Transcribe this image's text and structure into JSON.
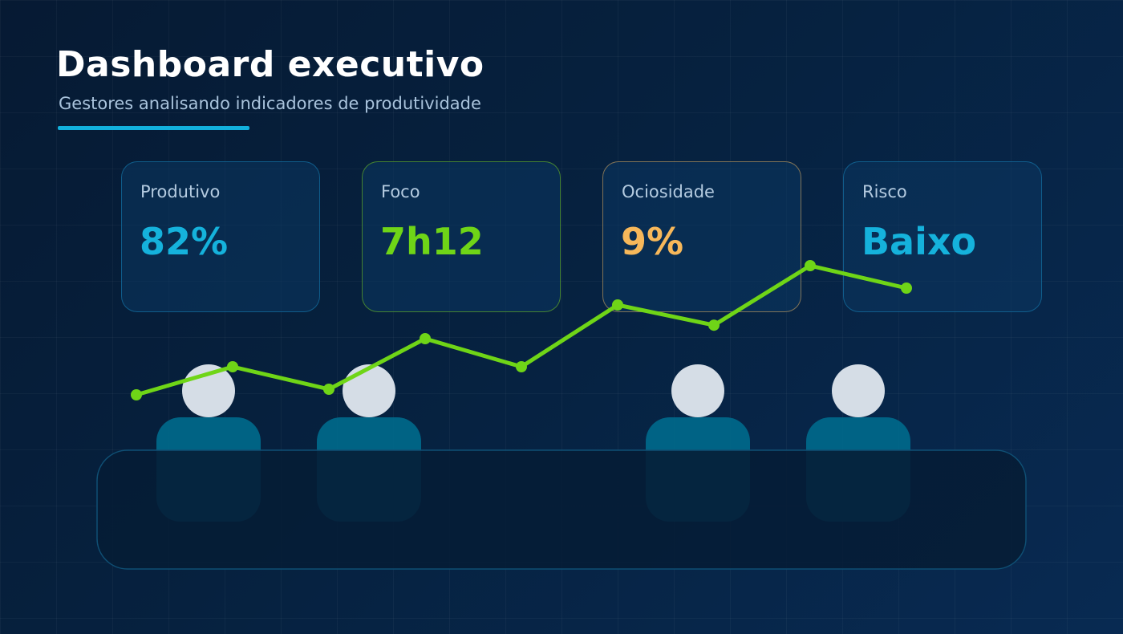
{
  "header": {
    "title": "Dashboard executivo",
    "subtitle": "Gestores analisando indicadores de produtividade",
    "accent_color": "#12b0dc"
  },
  "kpis": [
    {
      "label": "Produtivo",
      "value": "82%",
      "color": "#15b2dc"
    },
    {
      "label": "Foco",
      "value": "7h12",
      "color": "#6fd517"
    },
    {
      "label": "Ociosidade",
      "value": "9%",
      "color": "#f7b85a"
    },
    {
      "label": "Risco",
      "value": "Baixo",
      "color": "#15b2dc"
    }
  ],
  "scene": {
    "people_count": 4,
    "head_color": "#d5dde6",
    "body_color": "#006a8c",
    "table_color": "#061d36"
  },
  "trend_line": {
    "color": "#6fd517",
    "values": [
      0.2,
      0.45,
      0.25,
      0.7,
      0.45,
      1.0,
      0.82,
      1.35,
      1.15
    ]
  }
}
